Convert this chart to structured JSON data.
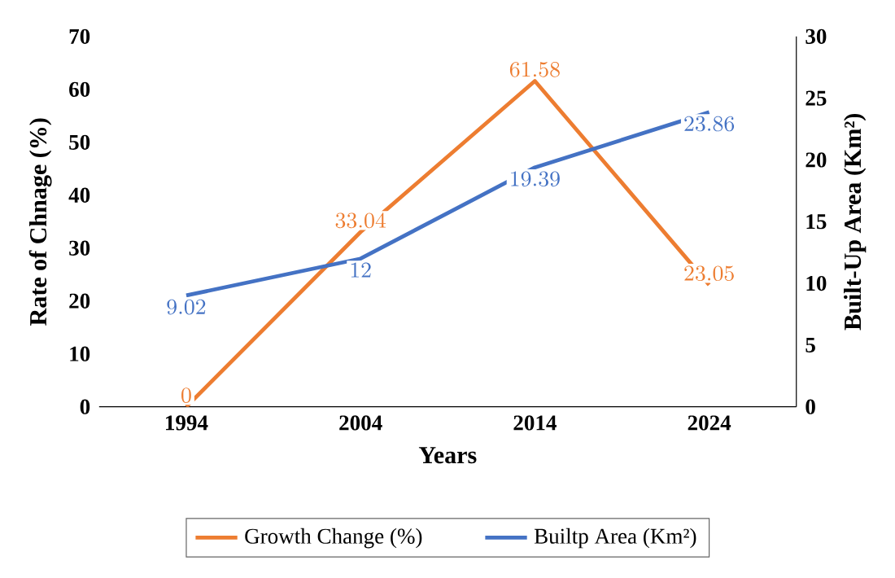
{
  "chart_data": {
    "type": "line",
    "categories": [
      "1994",
      "2004",
      "2014",
      "2024"
    ],
    "xlabel": "Years",
    "ylabel": "Rate of Chnage (%)",
    "y2label": "Built-Up Area (Km²)",
    "ylim": [
      0,
      70
    ],
    "yticks": [
      0,
      10,
      20,
      30,
      40,
      50,
      60,
      70
    ],
    "y2lim": [
      0,
      30
    ],
    "y2ticks": [
      0,
      5,
      10,
      15,
      20,
      25,
      30
    ],
    "series": [
      {
        "name": "Growth Change (%)",
        "color": "#ed7d31",
        "values": [
          0,
          33.04,
          61.58,
          23.05
        ]
      },
      {
        "name": "Builtp Area (Km²)",
        "color": "#4472c4",
        "values": [
          9.02,
          12,
          19.39,
          23.86
        ],
        "axis": "y2"
      }
    ],
    "data_labels": true,
    "legend": "bottom",
    "grid": false,
    "marker": "none",
    "line_style": "solid"
  }
}
